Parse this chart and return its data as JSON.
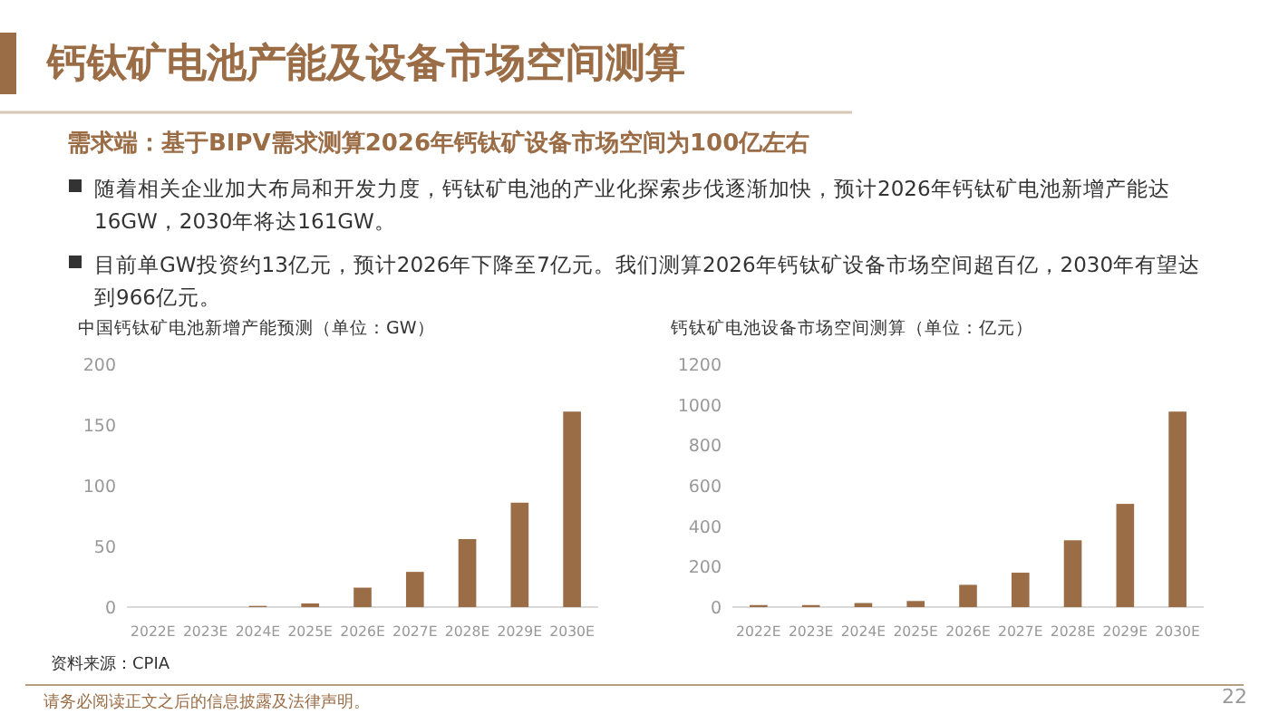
{
  "chart_data": [
    {
      "type": "other",
      "title": "钙钛矿电池产能及设备市场空间测算",
      "subtitle": "需求端：基于BIPV需求测算2026年钙钛矿设备市场空间为100亿左右",
      "annotations": [
        "随着相关企业加大布局和开发力度，钙钛矿电池的产业化探索步伐逐渐加快，预计2026年钙钛矿电池新增产能达16GW，2030年将达161GW。",
        "目前单GW投资约13亿元，预计2026年下降至7亿元。我们测算2026年钙钛矿设备市场空间超百亿，2030年有望达到966亿元。",
        "资料来源：CPIA",
        "请务必阅读正文之后的信息披露及法律声明。",
        "22"
      ]
    },
    {
      "type": "bar",
      "title": "中国钙钛矿电池新增产能预测（单位：GW）",
      "categories": [
        "2022E",
        "2023E",
        "2024E",
        "2025E",
        "2026E",
        "2027E",
        "2028E",
        "2029E",
        "2030E"
      ],
      "values": [
        0,
        0,
        1,
        3,
        16,
        29,
        56,
        86,
        161
      ],
      "color": "#9b6d46",
      "ylim": [
        0,
        200
      ],
      "yticks": [
        0,
        50,
        100,
        150,
        200
      ]
    },
    {
      "type": "bar",
      "title": "钙钛矿电池设备市场空间测算（单位：亿元）",
      "categories": [
        "2022E",
        "2023E",
        "2024E",
        "2025E",
        "2026E",
        "2027E",
        "2028E",
        "2029E",
        "2030E"
      ],
      "values": [
        10,
        10,
        20,
        30,
        110,
        170,
        330,
        510,
        966
      ],
      "color": "#9b6d46",
      "ylim": [
        0,
        1200
      ],
      "yticks": [
        0,
        200,
        400,
        600,
        800,
        1000,
        1200
      ]
    }
  ]
}
